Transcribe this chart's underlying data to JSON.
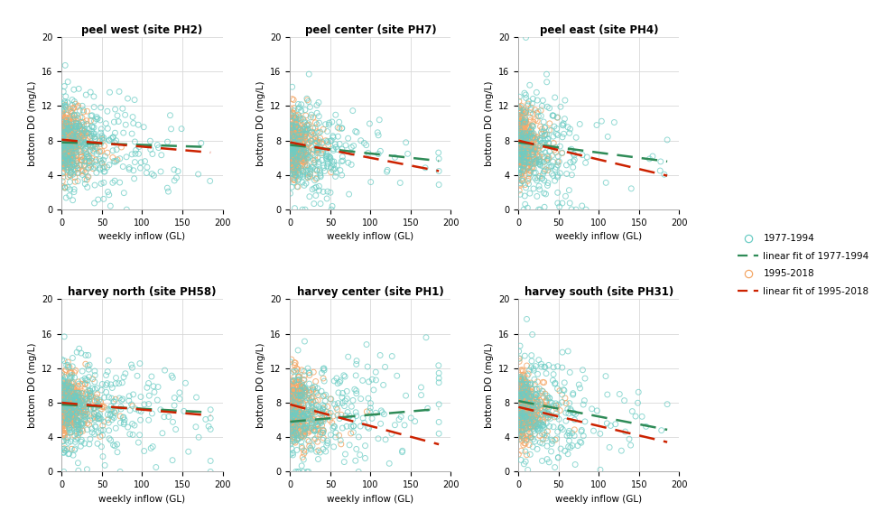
{
  "subplots": [
    {
      "title": "peel west (site PH2)"
    },
    {
      "title": "peel center (site PH7)"
    },
    {
      "title": "peel east (site PH4)"
    },
    {
      "title": "harvey north (site PH58)"
    },
    {
      "title": "harvey center (site PH1)"
    },
    {
      "title": "harvey south (site PH31)"
    }
  ],
  "xlabel": "weekly inflow (GL)",
  "ylabel": "bottom DO (mg/L)",
  "ylim": [
    0,
    20
  ],
  "xlim": [
    0,
    200
  ],
  "yticks": [
    0,
    4,
    8,
    12,
    16,
    20
  ],
  "xticks": [
    0,
    50,
    100,
    150,
    200
  ],
  "color_1977": "#6dcdc5",
  "color_1995": "#f4a96a",
  "color_line_1977": "#2e8b57",
  "color_line_1995": "#cc2200",
  "marker_size": 18,
  "marker_lw": 0.7,
  "background_color": "#ffffff",
  "grid_color": "#d8d8d8",
  "legend_labels": [
    "1977-1994",
    "linear fit of 1977-1994",
    "1995-2018",
    "linear fit of 1995-2018"
  ],
  "fits": [
    {
      "slope_77": -0.003,
      "intercept_77": 7.8,
      "slope_95": -0.008,
      "intercept_95": 8.1
    },
    {
      "slope_77": -0.01,
      "intercept_77": 7.5,
      "slope_95": -0.018,
      "intercept_95": 7.8
    },
    {
      "slope_77": -0.012,
      "intercept_77": 7.8,
      "slope_95": -0.022,
      "intercept_95": 8.0
    },
    {
      "slope_77": -0.005,
      "intercept_77": 7.8,
      "slope_95": -0.008,
      "intercept_95": 8.0
    },
    {
      "slope_77": 0.008,
      "intercept_77": 5.8,
      "slope_95": -0.025,
      "intercept_95": 7.8
    },
    {
      "slope_77": -0.018,
      "intercept_77": 8.2,
      "slope_95": -0.022,
      "intercept_95": 7.5
    }
  ],
  "scatter_params": [
    {
      "n77": 350,
      "xscale77": 40,
      "ybase77": 7.5,
      "ystd77": 3.0,
      "sl77": -0.003,
      "n95": 400,
      "xscale95": 12,
      "ybase95": 7.8,
      "ystd95": 1.8,
      "sl95": -0.012
    },
    {
      "n77": 300,
      "xscale77": 35,
      "ybase77": 7.0,
      "ystd77": 2.8,
      "sl77": -0.01,
      "n95": 380,
      "xscale95": 10,
      "ybase95": 7.5,
      "ystd95": 1.8,
      "sl95": -0.018
    },
    {
      "n77": 280,
      "xscale77": 30,
      "ybase77": 7.5,
      "ystd77": 3.2,
      "sl77": -0.012,
      "n95": 360,
      "xscale95": 10,
      "ybase95": 7.8,
      "ystd95": 1.9,
      "sl95": -0.022
    },
    {
      "n77": 380,
      "xscale77": 45,
      "ybase77": 7.8,
      "ystd77": 2.8,
      "sl77": -0.005,
      "n95": 420,
      "xscale95": 12,
      "ybase95": 7.8,
      "ystd95": 1.6,
      "sl95": -0.008
    },
    {
      "n77": 320,
      "xscale77": 50,
      "ybase77": 6.5,
      "ystd77": 3.0,
      "sl77": 0.008,
      "n95": 390,
      "xscale95": 14,
      "ybase95": 7.5,
      "ystd95": 2.0,
      "sl95": -0.025
    },
    {
      "n77": 300,
      "xscale77": 40,
      "ybase77": 8.0,
      "ystd77": 2.8,
      "sl77": -0.018,
      "n95": 360,
      "xscale95": 12,
      "ybase95": 7.5,
      "ystd95": 1.8,
      "sl95": -0.022
    }
  ]
}
